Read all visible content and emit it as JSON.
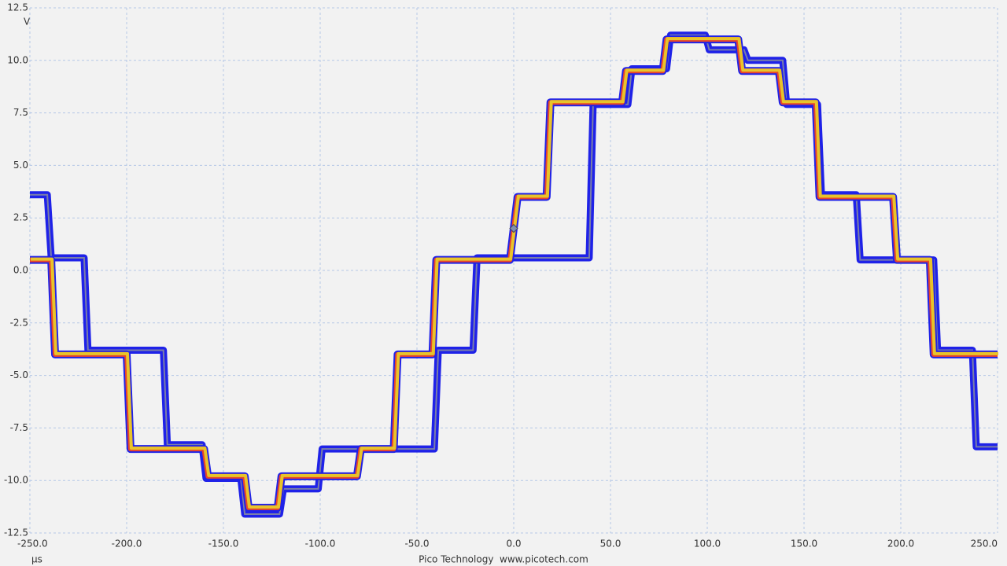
{
  "chart_data": {
    "type": "line",
    "x_unit": "µs",
    "y_unit": "V",
    "footer": "Pico Technology  www.picotech.com",
    "xlim": [
      -250,
      250
    ],
    "ylim": [
      -12.5,
      12.5
    ],
    "xticks": [
      {
        "value": -250,
        "label": "-250.0"
      },
      {
        "value": -200,
        "label": "-200.0"
      },
      {
        "value": -150,
        "label": "-150.0"
      },
      {
        "value": -100,
        "label": "-100.0"
      },
      {
        "value": -50,
        "label": "-50.0"
      },
      {
        "value": 0,
        "label": "0.0"
      },
      {
        "value": 50,
        "label": "50.0"
      },
      {
        "value": 100,
        "label": "100.0"
      },
      {
        "value": 150,
        "label": "150.0"
      },
      {
        "value": 200,
        "label": "200.0"
      },
      {
        "value": 250,
        "label": "250.0"
      }
    ],
    "yticks": [
      -12.5,
      {
        "value": -10,
        "label": "-10.0"
      },
      -7.5,
      {
        "value": -5,
        "label": "-5.0"
      },
      -2.5,
      {
        "value": 0,
        "label": "0.0"
      },
      2.5,
      {
        "value": 5,
        "label": "5.0"
      },
      7.5,
      {
        "value": 10,
        "label": "10.0"
      },
      12.5
    ],
    "grid": true,
    "trigger": {
      "x": 0,
      "y": 2,
      "color": "#8090b0"
    },
    "series": [
      {
        "color": "#1f22e8",
        "x": [
          -250,
          -241,
          -239,
          -222,
          -220,
          -181,
          -179,
          -161,
          -159,
          -141,
          -139,
          -121,
          -119,
          -101,
          -99,
          -41,
          -39,
          -21,
          -19,
          39,
          41,
          59,
          61,
          79,
          81,
          99,
          101,
          119,
          121,
          139,
          141,
          157,
          159,
          177,
          179,
          217,
          219,
          237,
          239,
          250
        ],
        "values": [
          3.6,
          3.6,
          0.6,
          0.6,
          -3.8,
          -3.8,
          -8.3,
          -8.3,
          -9.9,
          -9.9,
          -11.6,
          -11.6,
          -10.4,
          -10.4,
          -8.5,
          -8.5,
          -3.8,
          -3.8,
          0.6,
          0.6,
          7.9,
          7.9,
          9.6,
          9.6,
          11.2,
          11.2,
          10.5,
          10.5,
          10.0,
          10.0,
          7.9,
          7.9,
          3.6,
          3.6,
          0.5,
          0.5,
          -3.8,
          -3.8,
          -8.4,
          -8.4
        ]
      },
      {
        "color": "#e8c42a",
        "x": [
          -250,
          -239,
          -237,
          -200,
          -198,
          -160,
          -158,
          -139,
          -137,
          -122,
          -120,
          -81,
          -79,
          -62,
          -60,
          -42,
          -40,
          -2,
          0,
          2,
          17,
          19,
          56,
          58,
          77,
          79,
          116,
          118,
          137,
          139,
          156,
          158,
          196,
          198,
          215,
          217,
          250
        ],
        "values": [
          0.5,
          0.5,
          -4,
          -4,
          -8.5,
          -8.5,
          -9.8,
          -9.8,
          -11.3,
          -11.3,
          -9.8,
          -9.8,
          -8.5,
          -8.5,
          -4,
          -4,
          0.5,
          0.5,
          2,
          3.5,
          3.5,
          8,
          8,
          9.5,
          9.5,
          11,
          11,
          9.5,
          9.5,
          8,
          8,
          3.5,
          3.5,
          0.5,
          0.5,
          -4,
          -4
        ]
      }
    ]
  }
}
